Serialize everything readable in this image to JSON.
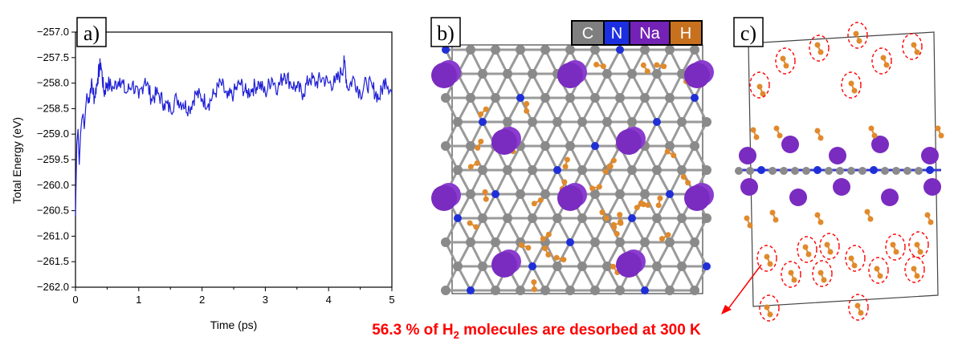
{
  "panels": {
    "a": "a)",
    "b": "b)",
    "c": "c)"
  },
  "legend": {
    "items": [
      {
        "label": "C",
        "color": "#7f7f7f"
      },
      {
        "label": "N",
        "color": "#1c2fe0"
      },
      {
        "label": "Na",
        "color": "#7322b5"
      },
      {
        "label": "H",
        "color": "#c7701e"
      }
    ]
  },
  "caption": {
    "prefix": "56.3 % of H",
    "subscript": "2",
    "suffix": " molecules are desorbed at 300 K"
  },
  "colors": {
    "line": "#1f1fd6",
    "carbon": "#8a8a8a",
    "nitrogen": "#1f2fd8",
    "sodium": "#7a2bc0",
    "hydrogen": "#e08a2c",
    "highlight": "#ff0000"
  },
  "chart_data": {
    "type": "line",
    "title": "",
    "xlabel": "Time (ps)",
    "ylabel": "Total Energy (eV)",
    "xlim": [
      0,
      5
    ],
    "ylim": [
      -262.0,
      -257.0
    ],
    "x_ticks": [
      0,
      1,
      2,
      3,
      4,
      5
    ],
    "y_ticks": [
      -262.0,
      -261.5,
      -261.0,
      -260.5,
      -260.0,
      -259.5,
      -259.0,
      -258.5,
      -258.0,
      -257.5,
      -257.0
    ],
    "grid": false,
    "series": [
      {
        "color": "#1f1fd6",
        "x": [
          0,
          0.02,
          0.04,
          0.06,
          0.08,
          0.1,
          0.12,
          0.14,
          0.16,
          0.18,
          0.2,
          0.25,
          0.3,
          0.35,
          0.4,
          0.45,
          0.5,
          0.6,
          0.7,
          0.8,
          0.9,
          1.0,
          1.1,
          1.2,
          1.3,
          1.4,
          1.5,
          1.6,
          1.7,
          1.8,
          1.9,
          2.0,
          2.1,
          2.2,
          2.3,
          2.4,
          2.5,
          2.6,
          2.7,
          2.8,
          2.9,
          3.0,
          3.1,
          3.2,
          3.3,
          3.4,
          3.5,
          3.6,
          3.7,
          3.8,
          3.9,
          4.0,
          4.1,
          4.2,
          4.25,
          4.3,
          4.4,
          4.5,
          4.6,
          4.7,
          4.8,
          4.9,
          5.0
        ],
        "y": [
          -260.6,
          -259.2,
          -258.9,
          -259.6,
          -259.0,
          -258.7,
          -258.6,
          -258.9,
          -258.5,
          -258.2,
          -258.4,
          -258.0,
          -258.3,
          -257.9,
          -257.6,
          -258.2,
          -258.0,
          -258.1,
          -257.9,
          -258.2,
          -258.0,
          -258.3,
          -257.9,
          -258.3,
          -258.2,
          -258.4,
          -258.5,
          -258.3,
          -258.4,
          -258.5,
          -258.2,
          -258.3,
          -258.4,
          -258.2,
          -258.0,
          -258.3,
          -258.2,
          -258.0,
          -258.2,
          -258.1,
          -258.0,
          -258.2,
          -257.9,
          -258.1,
          -257.8,
          -258.0,
          -258.1,
          -258.2,
          -257.9,
          -258.0,
          -257.9,
          -258.0,
          -258.0,
          -257.8,
          -257.6,
          -258.1,
          -257.9,
          -258.2,
          -258.0,
          -258.1,
          -258.3,
          -257.9,
          -258.2
        ]
      }
    ]
  }
}
